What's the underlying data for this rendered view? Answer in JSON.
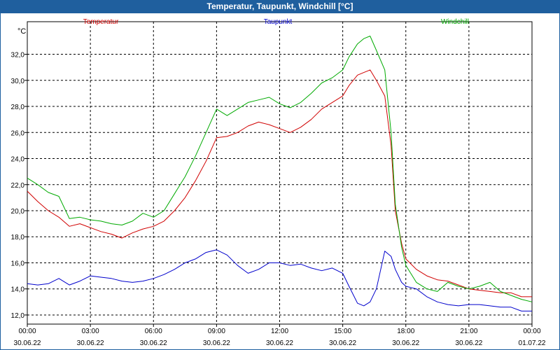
{
  "window": {
    "title": "Temperatur, Taupunkt, Windchill [°C]"
  },
  "chart_data": {
    "type": "line",
    "title": "Temperatur, Taupunkt, Windchill [°C]",
    "ylabel": "°C",
    "xlabel": "",
    "ylim": [
      11.3,
      34.5
    ],
    "xlim": [
      0,
      24
    ],
    "grid": true,
    "y_ticks": [
      "12,0",
      "14,0",
      "16,0",
      "18,0",
      "20,0",
      "22,0",
      "24,0",
      "26,0",
      "28,0",
      "30,0",
      "32,0"
    ],
    "x_ticks": [
      {
        "time": "00:00",
        "date": "30.06.22"
      },
      {
        "time": "03:00",
        "date": "30.06.22"
      },
      {
        "time": "06:00",
        "date": "30.06.22"
      },
      {
        "time": "09:00",
        "date": "30.06.22"
      },
      {
        "time": "12:00",
        "date": "30.06.22"
      },
      {
        "time": "15:00",
        "date": "30.06.22"
      },
      {
        "time": "18:00",
        "date": "30.06.22"
      },
      {
        "time": "21:00",
        "date": "30.06.22"
      },
      {
        "time": "00:00",
        "date": "01.07.22"
      }
    ],
    "series": [
      {
        "name": "Temperatur",
        "color": "#d00000",
        "x": [
          0,
          0.5,
          1,
          1.5,
          2,
          2.5,
          3,
          3.5,
          4,
          4.5,
          5,
          5.5,
          6,
          6.5,
          7,
          7.5,
          8,
          8.5,
          9,
          9.5,
          10,
          10.5,
          11,
          11.5,
          12,
          12.5,
          13,
          13.5,
          14,
          14.5,
          15,
          15.3,
          15.7,
          16,
          16.3,
          16.6,
          17,
          17.3,
          17.5,
          17.8,
          18,
          18.5,
          19,
          19.5,
          20,
          20.5,
          21,
          21.5,
          22,
          22.5,
          23,
          23.5,
          24
        ],
        "values": [
          21.5,
          20.7,
          20.0,
          19.5,
          18.8,
          19.0,
          18.7,
          18.4,
          18.2,
          17.9,
          18.3,
          18.6,
          18.8,
          19.2,
          20.0,
          21.0,
          22.3,
          23.8,
          25.6,
          25.7,
          26.0,
          26.5,
          26.8,
          26.6,
          26.3,
          26.0,
          26.4,
          27.0,
          27.8,
          28.3,
          28.8,
          29.6,
          30.4,
          30.6,
          30.8,
          30.0,
          28.8,
          25.0,
          20.0,
          17.5,
          16.3,
          15.5,
          15.0,
          14.7,
          14.6,
          14.3,
          14.0,
          13.9,
          13.8,
          13.7,
          13.7,
          13.4,
          13.4
        ]
      },
      {
        "name": "Taupunkt",
        "color": "#0000cc",
        "x": [
          0,
          0.5,
          1,
          1.5,
          2,
          2.5,
          3,
          3.5,
          4,
          4.5,
          5,
          5.5,
          6,
          6.5,
          7,
          7.5,
          8,
          8.5,
          9,
          9.5,
          10,
          10.5,
          11,
          11.5,
          12,
          12.5,
          13,
          13.5,
          14,
          14.5,
          15,
          15.3,
          15.7,
          16,
          16.3,
          16.6,
          17,
          17.3,
          17.5,
          17.8,
          18,
          18.5,
          19,
          19.5,
          20,
          20.5,
          21,
          21.5,
          22,
          22.5,
          23,
          23.5,
          24
        ],
        "values": [
          14.4,
          14.3,
          14.4,
          14.8,
          14.3,
          14.6,
          15.0,
          14.9,
          14.8,
          14.6,
          14.5,
          14.6,
          14.8,
          15.1,
          15.5,
          16.0,
          16.3,
          16.8,
          17.0,
          16.6,
          15.8,
          15.2,
          15.5,
          16.0,
          16.0,
          15.8,
          15.9,
          15.6,
          15.4,
          15.6,
          15.2,
          14.2,
          12.9,
          12.7,
          13.0,
          14.0,
          16.9,
          16.5,
          15.5,
          14.5,
          14.2,
          14.0,
          13.4,
          13.0,
          12.8,
          12.7,
          12.8,
          12.8,
          12.7,
          12.6,
          12.6,
          12.3,
          12.3
        ]
      },
      {
        "name": "Windchill",
        "color": "#00aa00",
        "x": [
          0,
          0.5,
          1,
          1.5,
          2,
          2.5,
          3,
          3.5,
          4,
          4.5,
          5,
          5.5,
          6,
          6.5,
          7,
          7.5,
          8,
          8.5,
          9,
          9.5,
          10,
          10.5,
          11,
          11.5,
          12,
          12.5,
          13,
          13.5,
          14,
          14.5,
          15,
          15.3,
          15.7,
          16,
          16.3,
          16.6,
          17,
          17.3,
          17.5,
          17.8,
          18,
          18.5,
          19,
          19.5,
          20,
          20.5,
          21,
          21.5,
          22,
          22.5,
          23,
          23.5,
          24
        ],
        "values": [
          22.5,
          22.0,
          21.4,
          21.1,
          19.4,
          19.5,
          19.3,
          19.2,
          19.0,
          18.9,
          19.2,
          19.8,
          19.5,
          20.0,
          21.3,
          22.6,
          24.2,
          26.0,
          27.8,
          27.3,
          27.8,
          28.3,
          28.5,
          28.7,
          28.2,
          27.9,
          28.3,
          29.0,
          29.8,
          30.2,
          30.8,
          31.8,
          32.8,
          33.2,
          33.4,
          32.3,
          30.8,
          26.0,
          20.5,
          17.2,
          15.8,
          14.5,
          14.0,
          13.8,
          14.5,
          14.2,
          14.0,
          14.2,
          14.5,
          13.8,
          13.5,
          13.2,
          13.0
        ]
      }
    ]
  }
}
